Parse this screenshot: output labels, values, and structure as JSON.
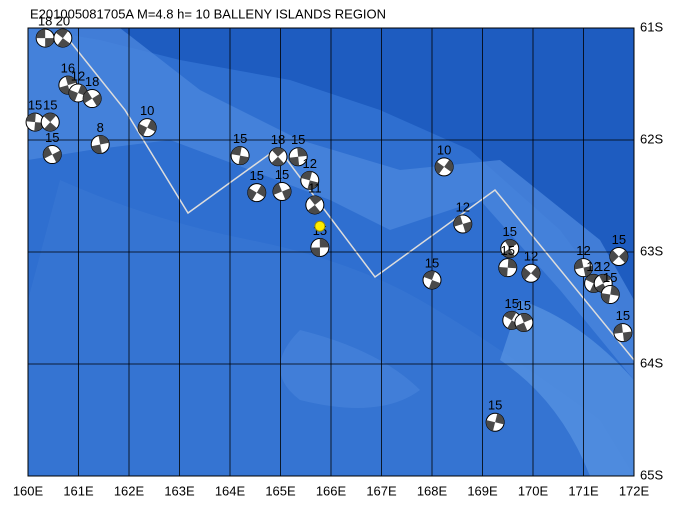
{
  "map": {
    "title": "E201005081705A M=4.8 h= 10 BALLENY ISLANDS REGION",
    "xticks": [
      {
        "value": 160,
        "label": "160E"
      },
      {
        "value": 161,
        "label": "161E"
      },
      {
        "value": 162,
        "label": "162E"
      },
      {
        "value": 163,
        "label": "163E"
      },
      {
        "value": 164,
        "label": "164E"
      },
      {
        "value": 165,
        "label": "165E"
      },
      {
        "value": 166,
        "label": "166E"
      },
      {
        "value": 167,
        "label": "167E"
      },
      {
        "value": 168,
        "label": "168E"
      },
      {
        "value": 169,
        "label": "169E"
      },
      {
        "value": 170,
        "label": "170E"
      },
      {
        "value": 171,
        "label": "171E"
      },
      {
        "value": 172,
        "label": "172E"
      }
    ],
    "yticks": [
      {
        "value": -61,
        "label": "61S"
      },
      {
        "value": -62,
        "label": "62S"
      },
      {
        "value": -63,
        "label": "63S"
      },
      {
        "value": -64,
        "label": "64S"
      },
      {
        "value": -65,
        "label": "65S"
      }
    ],
    "xlim": [
      160,
      172
    ],
    "ylim": [
      -65,
      -61
    ],
    "epicenter": {
      "lon": 165.78,
      "lat": -62.77
    },
    "events": [
      {
        "lon": 160.34,
        "lat": -61.09,
        "depth": "18"
      },
      {
        "lon": 160.69,
        "lat": -61.09,
        "depth": "20"
      },
      {
        "lon": 160.79,
        "lat": -61.51,
        "depth": "16"
      },
      {
        "lon": 160.99,
        "lat": -61.58,
        "depth": "12"
      },
      {
        "lon": 161.27,
        "lat": -61.63,
        "depth": "18"
      },
      {
        "lon": 160.14,
        "lat": -61.84,
        "depth": "15"
      },
      {
        "lon": 160.44,
        "lat": -61.84,
        "depth": "15"
      },
      {
        "lon": 161.43,
        "lat": -62.04,
        "depth": "8"
      },
      {
        "lon": 162.36,
        "lat": -61.89,
        "depth": "10"
      },
      {
        "lon": 160.48,
        "lat": -62.13,
        "depth": "15"
      },
      {
        "lon": 164.2,
        "lat": -62.14,
        "depth": "15"
      },
      {
        "lon": 164.95,
        "lat": -62.15,
        "depth": "18"
      },
      {
        "lon": 165.35,
        "lat": -62.15,
        "depth": "15"
      },
      {
        "lon": 164.53,
        "lat": -62.47,
        "depth": "15"
      },
      {
        "lon": 165.03,
        "lat": -62.46,
        "depth": "15"
      },
      {
        "lon": 165.58,
        "lat": -62.36,
        "depth": "12"
      },
      {
        "lon": 165.68,
        "lat": -62.58,
        "depth": "11"
      },
      {
        "lon": 165.78,
        "lat": -62.96,
        "depth": "15"
      },
      {
        "lon": 168.24,
        "lat": -62.24,
        "depth": "10"
      },
      {
        "lon": 168.61,
        "lat": -62.75,
        "depth": "12"
      },
      {
        "lon": 168.0,
        "lat": -63.25,
        "depth": "15"
      },
      {
        "lon": 169.54,
        "lat": -62.97,
        "depth": "15"
      },
      {
        "lon": 169.5,
        "lat": -63.14,
        "depth": "15"
      },
      {
        "lon": 169.96,
        "lat": -63.19,
        "depth": "12"
      },
      {
        "lon": 171.0,
        "lat": -63.14,
        "depth": "12"
      },
      {
        "lon": 171.2,
        "lat": -63.28,
        "depth": "12"
      },
      {
        "lon": 171.39,
        "lat": -63.28,
        "depth": "12"
      },
      {
        "lon": 171.53,
        "lat": -63.38,
        "depth": "15"
      },
      {
        "lon": 171.7,
        "lat": -63.04,
        "depth": "15"
      },
      {
        "lon": 171.78,
        "lat": -63.72,
        "depth": "15"
      },
      {
        "lon": 169.58,
        "lat": -63.61,
        "depth": "15"
      },
      {
        "lon": 169.82,
        "lat": -63.63,
        "depth": "15"
      },
      {
        "lon": 169.25,
        "lat": -64.52,
        "depth": "15"
      }
    ]
  }
}
